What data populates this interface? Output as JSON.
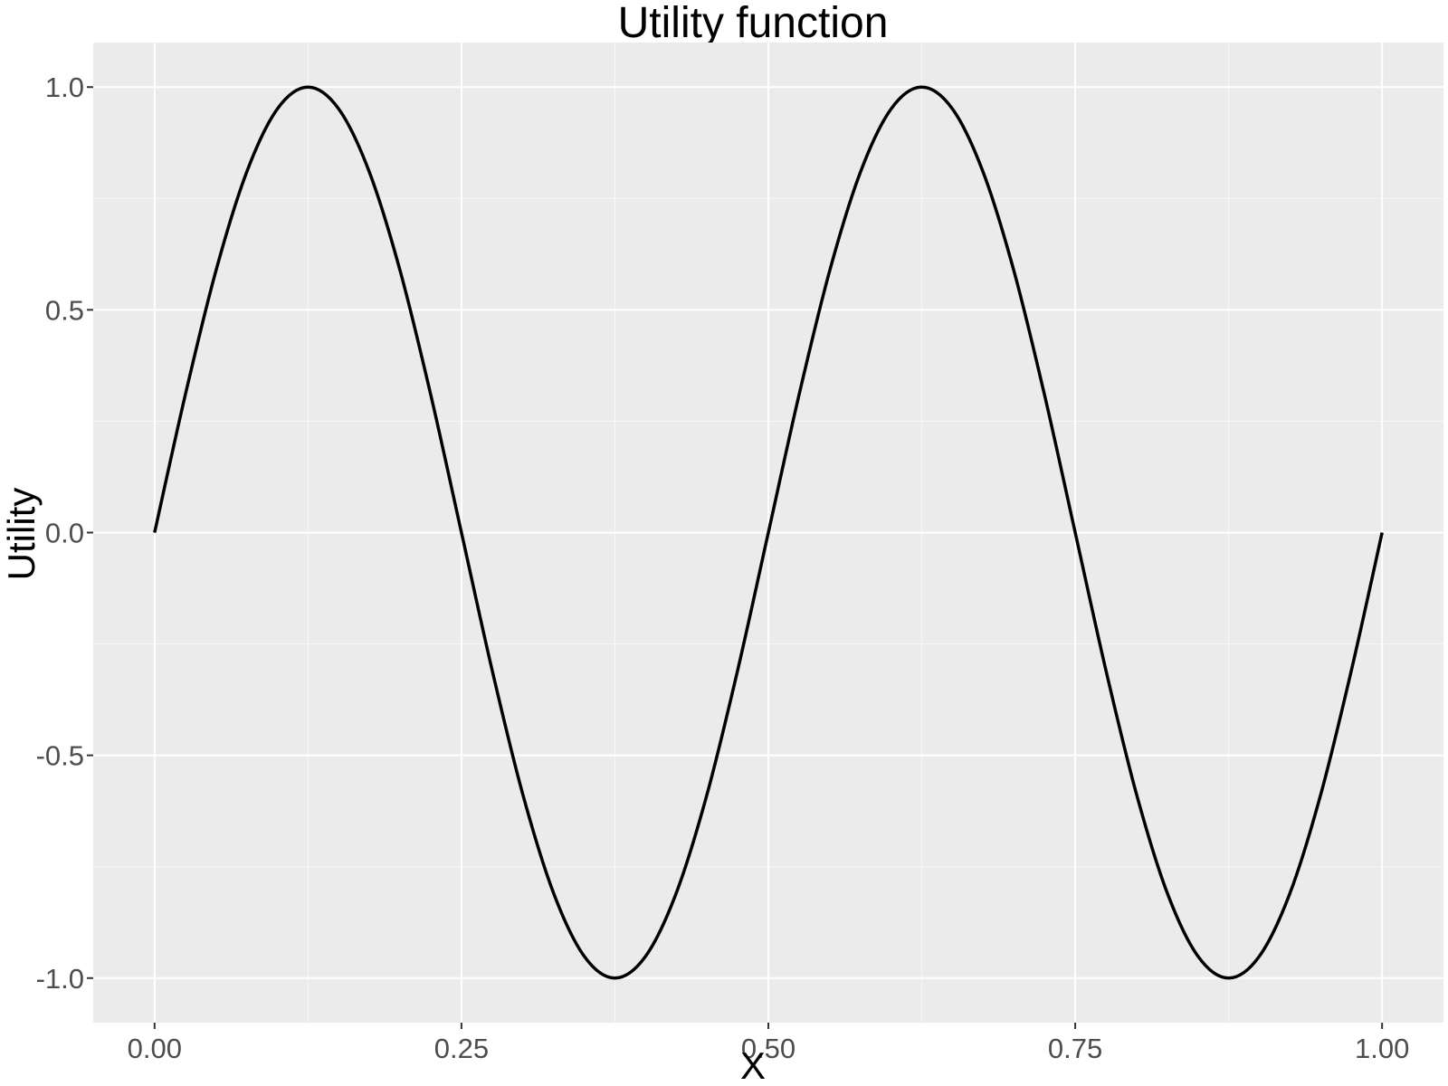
{
  "chart_data": {
    "type": "line",
    "title": "Utility function",
    "xlabel": "X",
    "ylabel": "Utility",
    "xlim": [
      -0.05,
      1.05
    ],
    "ylim": [
      -1.1,
      1.1
    ],
    "x_ticks": [
      0.0,
      0.25,
      0.5,
      0.75,
      1.0
    ],
    "x_tick_labels": [
      "0.00",
      "0.25",
      "0.50",
      "0.75",
      "1.00"
    ],
    "y_ticks": [
      -1.0,
      -0.5,
      0.0,
      0.5,
      1.0
    ],
    "y_tick_labels": [
      "-1.0",
      "-0.5",
      "0.0",
      "0.5",
      "1.0"
    ],
    "x_minor_ticks": [
      0.125,
      0.375,
      0.625,
      0.875
    ],
    "y_minor_ticks": [
      -0.75,
      -0.25,
      0.25,
      0.75
    ],
    "grid": true,
    "colors": {
      "panel_background": "#ebebeb",
      "grid": "#ffffff",
      "line": "#000000"
    },
    "series": [
      {
        "x": [
          0,
          0.025,
          0.05,
          0.075,
          0.1,
          0.125,
          0.15,
          0.175,
          0.2,
          0.225,
          0.25,
          0.275,
          0.3,
          0.325,
          0.35,
          0.375,
          0.4,
          0.425,
          0.45,
          0.475,
          0.5,
          0.525,
          0.55,
          0.575,
          0.6,
          0.625,
          0.65,
          0.675,
          0.7,
          0.725,
          0.75,
          0.775,
          0.8,
          0.825,
          0.85,
          0.875,
          0.9,
          0.925,
          0.95,
          0.975,
          1.0
        ],
        "y": [
          0,
          0.309,
          0.588,
          0.809,
          0.951,
          1.0,
          0.951,
          0.809,
          0.588,
          0.309,
          0,
          -0.309,
          -0.588,
          -0.809,
          -0.951,
          -1.0,
          -0.951,
          -0.809,
          -0.588,
          -0.309,
          0,
          0.309,
          0.588,
          0.809,
          0.951,
          1.0,
          0.951,
          0.809,
          0.588,
          0.309,
          0,
          -0.309,
          -0.588,
          -0.809,
          -0.951,
          -1.0,
          -0.951,
          -0.809,
          -0.588,
          -0.309,
          0
        ]
      }
    ]
  }
}
